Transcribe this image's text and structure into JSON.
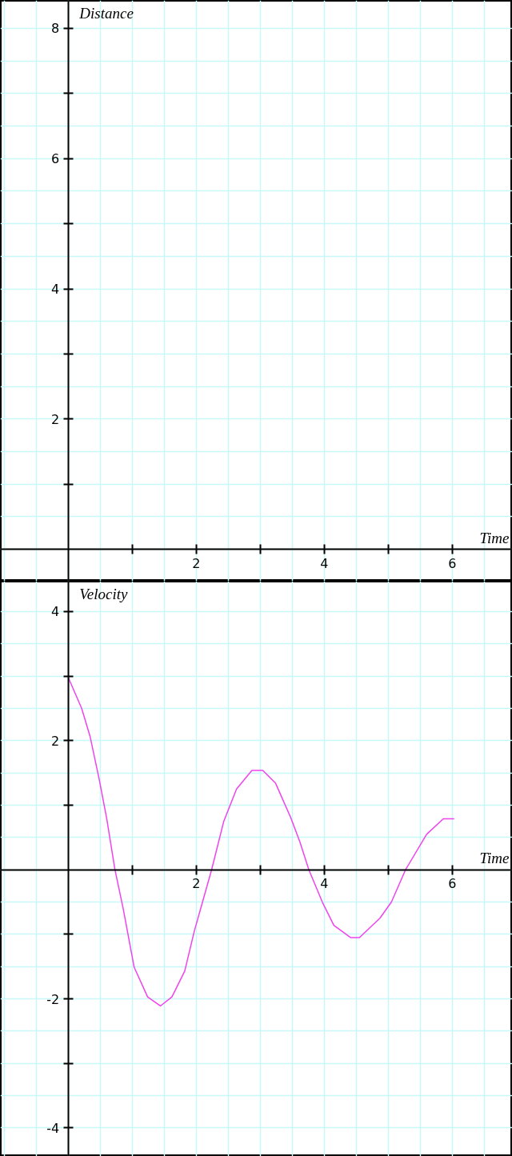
{
  "chart_data": [
    {
      "type": "line",
      "xlabel": "Time",
      "ylabel": "Distance",
      "xlim": [
        -1.06,
        6.94
      ],
      "ylim": [
        -0.49,
        8.43
      ],
      "xticks": [
        {
          "value": 1,
          "label": null
        },
        2,
        {
          "value": 3,
          "label": null
        },
        4,
        {
          "value": 5,
          "label": null
        },
        6
      ],
      "yticks": [
        {
          "value": 1,
          "label": null
        },
        2,
        {
          "value": 3,
          "label": null
        },
        4,
        {
          "value": 5,
          "label": null
        },
        6,
        {
          "value": 7,
          "label": null
        },
        8
      ],
      "grid": true
    },
    {
      "type": "line",
      "xlabel": "Time",
      "ylabel": "Velocity",
      "xlim": [
        -1.06,
        6.94
      ],
      "ylim": [
        -4.44,
        4.47
      ],
      "xticks": [
        {
          "value": 1,
          "label": null
        },
        2,
        {
          "value": 3,
          "label": null
        },
        4,
        {
          "value": 5,
          "label": null
        },
        6
      ],
      "yticks": [
        -4,
        {
          "value": -3,
          "label": null
        },
        -2,
        {
          "value": -1,
          "label": null
        },
        {
          "value": 1,
          "label": null
        },
        2,
        {
          "value": 3,
          "label": null
        },
        4
      ],
      "grid": true,
      "series": [
        {
          "color": "#ee44ee",
          "x": [
            0,
            0.21,
            0.34,
            0.48,
            0.6,
            0.73,
            0.86,
            1.03,
            1.24,
            1.44,
            1.62,
            1.82,
            1.97,
            2.24,
            2.43,
            2.63,
            2.87,
            3.04,
            3.24,
            3.48,
            3.62,
            3.76,
            3.97,
            4.15,
            4.41,
            4.55,
            4.87,
            5.05,
            5.27,
            5.6,
            5.86,
            6.03
          ],
          "values": [
            2.98,
            2.5,
            2.07,
            1.42,
            0.8,
            0,
            -0.61,
            -1.51,
            -1.97,
            -2.11,
            -1.97,
            -1.57,
            -0.95,
            0,
            0.75,
            1.25,
            1.54,
            1.54,
            1.34,
            0.8,
            0.43,
            0,
            -0.5,
            -0.86,
            -1.05,
            -1.05,
            -0.75,
            -0.5,
            0,
            0.55,
            0.79,
            0.79
          ]
        }
      ]
    }
  ]
}
